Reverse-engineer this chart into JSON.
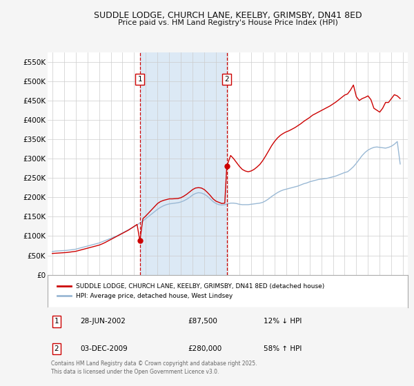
{
  "title_line1": "SUDDLE LODGE, CHURCH LANE, KEELBY, GRIMSBY, DN41 8ED",
  "title_line2": "Price paid vs. HM Land Registry's House Price Index (HPI)",
  "bg_color": "#f5f5f5",
  "plot_bg_color": "#ffffff",
  "shading_color": "#dce9f5",
  "red_color": "#cc0000",
  "blue_color": "#99b8d4",
  "marker_color": "#cc0000",
  "dashed_line_color": "#cc0000",
  "ylim": [
    0,
    575000
  ],
  "yticks": [
    0,
    50000,
    100000,
    150000,
    200000,
    250000,
    300000,
    350000,
    400000,
    450000,
    500000,
    550000
  ],
  "ytick_labels": [
    "£0",
    "£50K",
    "£100K",
    "£150K",
    "£200K",
    "£250K",
    "£300K",
    "£350K",
    "£400K",
    "£450K",
    "£500K",
    "£550K"
  ],
  "sale1_date": 2002.49,
  "sale1_price": 87500,
  "sale1_label": "1",
  "sale2_date": 2009.92,
  "sale2_price": 280000,
  "sale2_label": "2",
  "legend_red_label": "SUDDLE LODGE, CHURCH LANE, KEELBY, GRIMSBY, DN41 8ED (detached house)",
  "legend_blue_label": "HPI: Average price, detached house, West Lindsey",
  "table_row1": [
    "1",
    "28-JUN-2002",
    "£87,500",
    "12% ↓ HPI"
  ],
  "table_row2": [
    "2",
    "03-DEC-2009",
    "£280,000",
    "58% ↑ HPI"
  ],
  "footnote": "Contains HM Land Registry data © Crown copyright and database right 2025.\nThis data is licensed under the Open Government Licence v3.0.",
  "hpi_data_years": [
    1995.0,
    1995.25,
    1995.5,
    1995.75,
    1996.0,
    1996.25,
    1996.5,
    1996.75,
    1997.0,
    1997.25,
    1997.5,
    1997.75,
    1998.0,
    1998.25,
    1998.5,
    1998.75,
    1999.0,
    1999.25,
    1999.5,
    1999.75,
    2000.0,
    2000.25,
    2000.5,
    2000.75,
    2001.0,
    2001.25,
    2001.5,
    2001.75,
    2002.0,
    2002.25,
    2002.5,
    2002.75,
    2003.0,
    2003.25,
    2003.5,
    2003.75,
    2004.0,
    2004.25,
    2004.5,
    2004.75,
    2005.0,
    2005.25,
    2005.5,
    2005.75,
    2006.0,
    2006.25,
    2006.5,
    2006.75,
    2007.0,
    2007.25,
    2007.5,
    2007.75,
    2008.0,
    2008.25,
    2008.5,
    2008.75,
    2009.0,
    2009.25,
    2009.5,
    2009.75,
    2010.0,
    2010.25,
    2010.5,
    2010.75,
    2011.0,
    2011.25,
    2011.5,
    2011.75,
    2012.0,
    2012.25,
    2012.5,
    2012.75,
    2013.0,
    2013.25,
    2013.5,
    2013.75,
    2014.0,
    2014.25,
    2014.5,
    2014.75,
    2015.0,
    2015.25,
    2015.5,
    2015.75,
    2016.0,
    2016.25,
    2016.5,
    2016.75,
    2017.0,
    2017.25,
    2017.5,
    2017.75,
    2018.0,
    2018.25,
    2018.5,
    2018.75,
    2019.0,
    2019.25,
    2019.5,
    2019.75,
    2020.0,
    2020.25,
    2020.5,
    2020.75,
    2021.0,
    2021.25,
    2021.5,
    2021.75,
    2022.0,
    2022.25,
    2022.5,
    2022.75,
    2023.0,
    2023.25,
    2023.5,
    2023.75,
    2024.0,
    2024.25,
    2024.5,
    2024.75
  ],
  "hpi_data_values": [
    60000,
    61000,
    61500,
    62000,
    62500,
    63000,
    64000,
    65000,
    66000,
    68000,
    70000,
    72000,
    74000,
    76000,
    78000,
    80000,
    82000,
    85000,
    88000,
    91000,
    94000,
    97000,
    100000,
    104000,
    108000,
    112000,
    116000,
    120000,
    124000,
    129000,
    134000,
    139000,
    145000,
    151000,
    157000,
    163000,
    169000,
    174000,
    178000,
    181000,
    183000,
    184000,
    185000,
    186000,
    188000,
    191000,
    195000,
    200000,
    206000,
    210000,
    212000,
    211000,
    208000,
    203000,
    196000,
    189000,
    184000,
    181000,
    180000,
    181000,
    183000,
    185000,
    185000,
    184000,
    182000,
    181000,
    181000,
    181000,
    182000,
    183000,
    184000,
    185000,
    187000,
    191000,
    196000,
    202000,
    207000,
    212000,
    216000,
    219000,
    221000,
    223000,
    225000,
    227000,
    229000,
    232000,
    235000,
    237000,
    240000,
    242000,
    244000,
    246000,
    247000,
    248000,
    249000,
    251000,
    253000,
    255000,
    258000,
    261000,
    264000,
    266000,
    272000,
    279000,
    288000,
    298000,
    308000,
    316000,
    322000,
    326000,
    329000,
    330000,
    329000,
    328000,
    327000,
    329000,
    332000,
    337000,
    344000,
    286000
  ],
  "red_data_years": [
    1995.0,
    1995.25,
    1995.5,
    1995.75,
    1996.0,
    1996.25,
    1996.5,
    1996.75,
    1997.0,
    1997.25,
    1997.5,
    1997.75,
    1998.0,
    1998.25,
    1998.5,
    1998.75,
    1999.0,
    1999.25,
    1999.5,
    1999.75,
    2000.0,
    2000.25,
    2000.5,
    2000.75,
    2001.0,
    2001.25,
    2001.5,
    2001.75,
    2002.0,
    2002.25,
    2002.49,
    2002.75,
    2003.0,
    2003.25,
    2003.5,
    2003.75,
    2004.0,
    2004.25,
    2004.5,
    2004.75,
    2005.0,
    2005.25,
    2005.5,
    2005.75,
    2006.0,
    2006.25,
    2006.5,
    2006.75,
    2007.0,
    2007.25,
    2007.5,
    2007.75,
    2008.0,
    2008.25,
    2008.5,
    2008.75,
    2009.0,
    2009.25,
    2009.5,
    2009.75,
    2009.92,
    2010.25,
    2010.5,
    2010.75,
    2011.0,
    2011.25,
    2011.5,
    2011.75,
    2012.0,
    2012.25,
    2012.5,
    2012.75,
    2013.0,
    2013.25,
    2013.5,
    2013.75,
    2014.0,
    2014.25,
    2014.5,
    2014.75,
    2015.0,
    2015.25,
    2015.5,
    2015.75,
    2016.0,
    2016.25,
    2016.5,
    2016.75,
    2017.0,
    2017.25,
    2017.5,
    2017.75,
    2018.0,
    2018.25,
    2018.5,
    2018.75,
    2019.0,
    2019.25,
    2019.5,
    2019.75,
    2020.0,
    2020.25,
    2020.5,
    2020.75,
    2021.0,
    2021.25,
    2021.5,
    2021.75,
    2022.0,
    2022.25,
    2022.5,
    2022.75,
    2023.0,
    2023.25,
    2023.5,
    2023.75,
    2024.0,
    2024.25,
    2024.5,
    2024.75
  ],
  "red_data_values": [
    55000,
    55500,
    56000,
    56500,
    57000,
    57500,
    58500,
    59500,
    60500,
    62500,
    64500,
    66500,
    68500,
    70500,
    72500,
    74500,
    76500,
    79500,
    83000,
    87000,
    91000,
    95000,
    99000,
    103000,
    107000,
    111000,
    115000,
    120000,
    125000,
    130000,
    87500,
    145000,
    152000,
    160000,
    168000,
    176000,
    184000,
    189000,
    192000,
    194000,
    196000,
    196000,
    196500,
    197000,
    199000,
    203000,
    208000,
    214000,
    220000,
    224000,
    225000,
    224000,
    220000,
    213000,
    205000,
    196000,
    190000,
    187000,
    184000,
    185000,
    280000,
    308000,
    300000,
    290000,
    280000,
    272000,
    268000,
    266000,
    268000,
    272000,
    278000,
    285000,
    295000,
    307000,
    320000,
    333000,
    344000,
    353000,
    360000,
    365000,
    369000,
    372000,
    376000,
    380000,
    385000,
    390000,
    396000,
    401000,
    406000,
    412000,
    416000,
    420000,
    424000,
    428000,
    432000,
    436000,
    441000,
    446000,
    452000,
    458000,
    464000,
    467000,
    477000,
    490000,
    460000,
    450000,
    455000,
    458000,
    462000,
    452000,
    430000,
    425000,
    420000,
    430000,
    445000,
    445000,
    455000,
    465000,
    462000,
    455000
  ]
}
